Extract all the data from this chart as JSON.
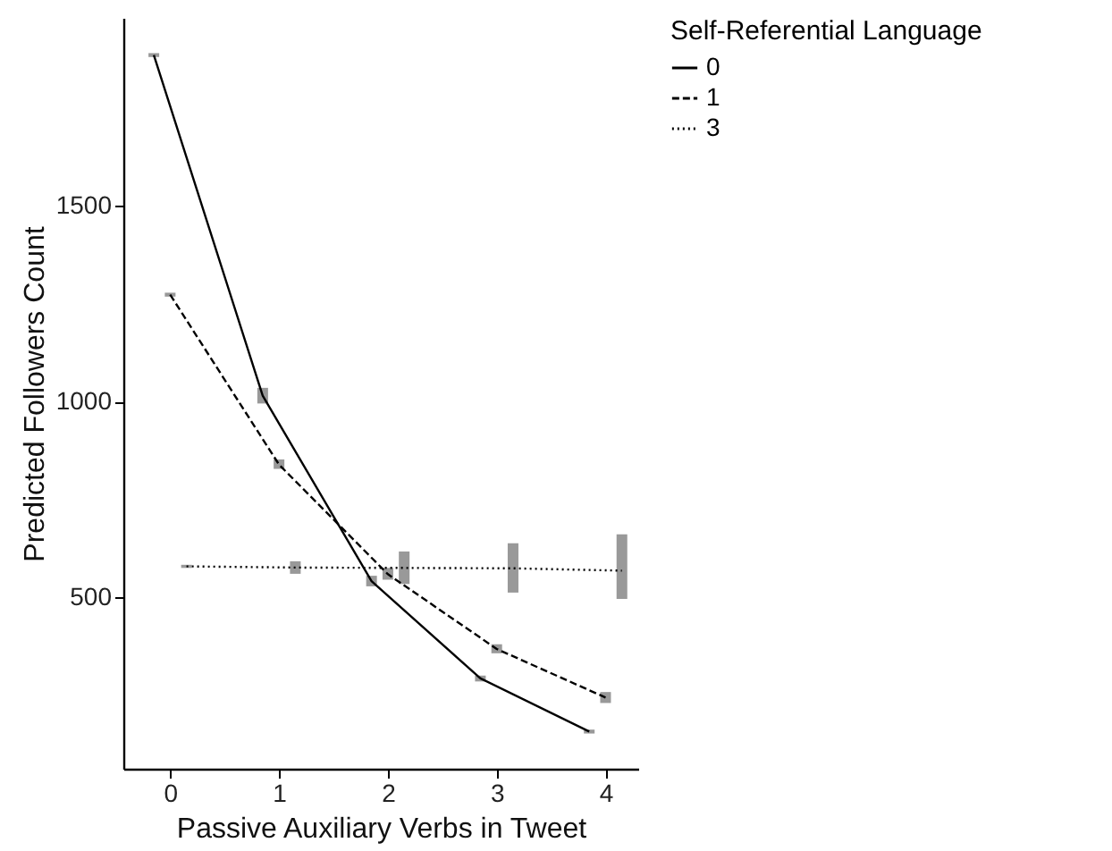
{
  "chart_data": {
    "type": "line",
    "xlabel": "Passive Auxiliary Verbs in Tweet",
    "ylabel": "Predicted Followers Count",
    "legend_title": "Self-Referential Language",
    "legend": "right",
    "grid": false,
    "marker": "none",
    "xlim": [
      -0.43,
      4.3
    ],
    "xticks": [
      0,
      1,
      2,
      3,
      4
    ],
    "ylim": [
      62,
      1980
    ],
    "yticks": [
      500,
      1000,
      1500
    ],
    "series": [
      {
        "name": "0",
        "color": "#000000",
        "line_style": "solid",
        "x": [
          -0.15,
          0.85,
          1.85,
          2.85,
          3.85
        ],
        "values": [
          1885,
          1015,
          541,
          293,
          157
        ],
        "errors": [
          [
            1880,
            1890
          ],
          [
            995,
            1035
          ],
          [
            528,
            555
          ],
          [
            285,
            300
          ],
          [
            152,
            162
          ]
        ]
      },
      {
        "name": "1",
        "color": "#000000",
        "line_style": "dashed",
        "x": [
          0,
          1,
          2,
          3,
          4
        ],
        "values": [
          1273,
          839,
          559,
          368,
          244
        ],
        "errors": [
          [
            1268,
            1278
          ],
          [
            828,
            852
          ],
          [
            545,
            575
          ],
          [
            357,
            380
          ],
          [
            230,
            258
          ]
        ]
      },
      {
        "name": "3",
        "color": "#000000",
        "line_style": "dotted",
        "x": [
          0.15,
          1.15,
          2.15,
          3.15,
          4.15
        ],
        "values": [
          579,
          576,
          575,
          574,
          568
        ],
        "errors": [
          [
            575,
            583
          ],
          [
            560,
            592
          ],
          [
            534,
            617
          ],
          [
            512,
            638
          ],
          [
            496,
            661
          ]
        ]
      }
    ]
  }
}
